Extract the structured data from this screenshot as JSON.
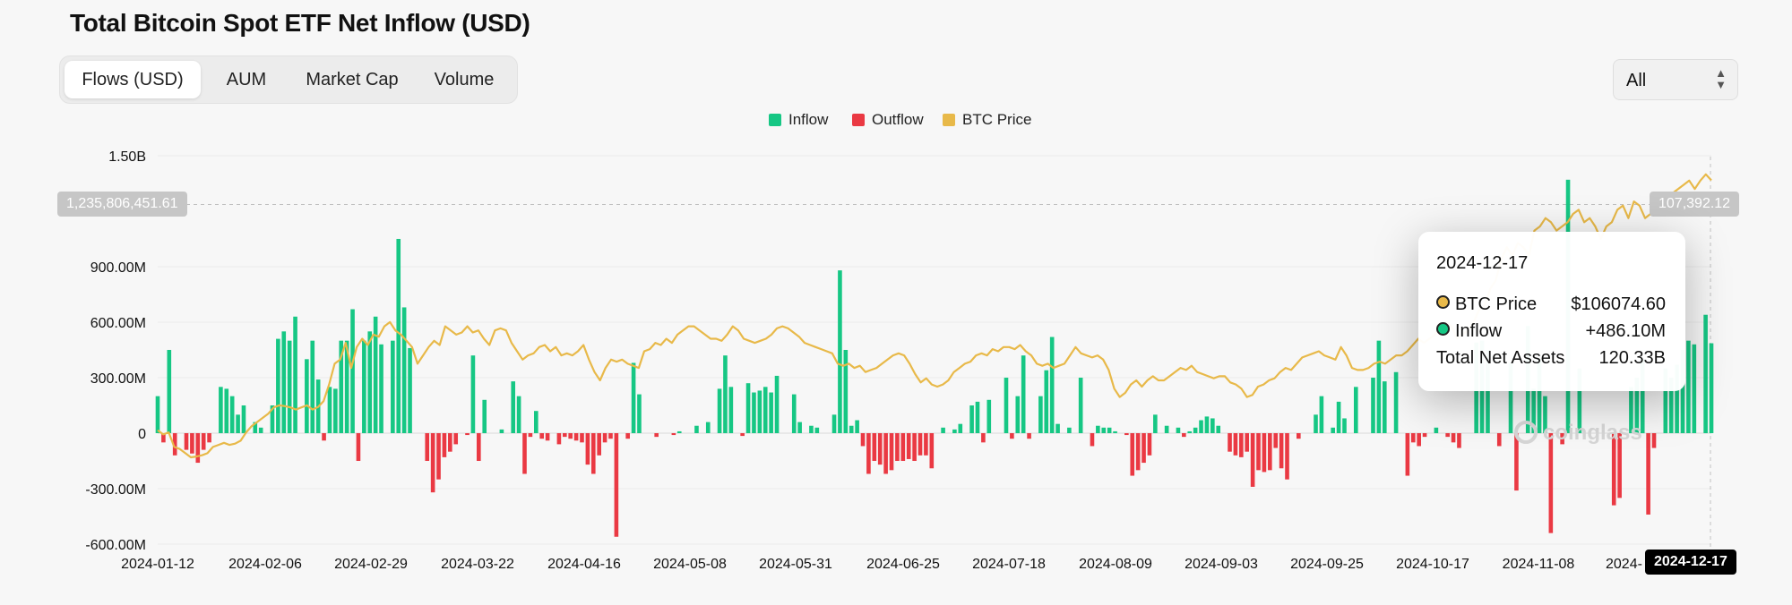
{
  "title": "Total Bitcoin Spot ETF Net Inflow (USD)",
  "tabs": [
    {
      "label": "Flows (USD)",
      "active": true
    },
    {
      "label": "AUM",
      "active": false
    },
    {
      "label": "Market Cap",
      "active": false
    },
    {
      "label": "Volume",
      "active": false
    }
  ],
  "range_select": {
    "value": "All"
  },
  "legend": [
    {
      "label": "Inflow",
      "color": "#16c784"
    },
    {
      "label": "Outflow",
      "color": "#ea3943"
    },
    {
      "label": "BTC Price",
      "color": "#e8b949"
    }
  ],
  "crosshair": {
    "y_label": "1,235,806,451.61",
    "price_label": "107,392.12",
    "x_label": "2024-12-17"
  },
  "tooltip": {
    "date": "2024-12-17",
    "rows": [
      {
        "label": "BTC Price",
        "value": "$106074.60",
        "dot": "#e8b949"
      },
      {
        "label": "Inflow",
        "value": "+486.10M",
        "dot": "#16c784"
      },
      {
        "label": "Total Net Assets",
        "value": "120.33B"
      }
    ]
  },
  "watermark": "coinglass",
  "chart_data": {
    "type": "bar",
    "title": "Total Bitcoin Spot ETF Net Inflow (USD)",
    "y_unit": "USD",
    "ylim": [
      -600000000,
      1500000000
    ],
    "y_ticks": [
      {
        "value": 1500000000,
        "label": "1.50B"
      },
      {
        "value": 900000000,
        "label": "900.00M"
      },
      {
        "value": 600000000,
        "label": "600.00M"
      },
      {
        "value": 300000000,
        "label": "300.00M"
      },
      {
        "value": 0,
        "label": "0"
      },
      {
        "value": -300000000,
        "label": "-300.00M"
      },
      {
        "value": -600000000,
        "label": "-600.00M"
      }
    ],
    "x_ticks": [
      "2024-01-12",
      "2024-02-06",
      "2024-02-29",
      "2024-03-22",
      "2024-04-16",
      "2024-05-08",
      "2024-05-31",
      "2024-06-25",
      "2024-07-18",
      "2024-08-09",
      "2024-09-03",
      "2024-09-25",
      "2024-10-17",
      "2024-11-08",
      "2024-12-17"
    ],
    "x_tick_partial": "2024-",
    "grid": true,
    "legend_position": "top-center",
    "series": [
      {
        "name": "Inflow",
        "color": "#16c784"
      },
      {
        "name": "Outflow",
        "color": "#ea3943"
      },
      {
        "name": "BTC Price",
        "color": "#e8b949",
        "type": "line"
      }
    ],
    "flows_musd": [
      200,
      -50,
      450,
      -120,
      0,
      -90,
      -110,
      -160,
      -90,
      -50,
      0,
      250,
      240,
      200,
      100,
      150,
      0,
      60,
      30,
      0,
      150,
      510,
      550,
      500,
      630,
      0,
      400,
      500,
      290,
      -40,
      250,
      240,
      500,
      500,
      670,
      -150,
      500,
      550,
      630,
      480,
      0,
      500,
      1050,
      680,
      460,
      0,
      0,
      -150,
      -320,
      -250,
      -130,
      -100,
      -60,
      0,
      -10,
      420,
      -150,
      180,
      0,
      0,
      20,
      0,
      280,
      200,
      -220,
      -20,
      120,
      -30,
      -40,
      0,
      -60,
      -20,
      -30,
      -40,
      -50,
      -170,
      -220,
      -120,
      -50,
      -30,
      -560,
      0,
      -30,
      380,
      210,
      0,
      0,
      -20,
      0,
      0,
      -10,
      10,
      0,
      0,
      40,
      0,
      60,
      0,
      240,
      420,
      250,
      0,
      -15,
      270,
      220,
      230,
      250,
      220,
      310,
      0,
      0,
      210,
      60,
      0,
      40,
      30,
      0,
      0,
      100,
      880,
      450,
      40,
      70,
      -70,
      -220,
      -150,
      -170,
      -220,
      -200,
      -150,
      -150,
      -140,
      -150,
      -120,
      -120,
      -190,
      0,
      30,
      0,
      20,
      50,
      0,
      150,
      170,
      -50,
      180,
      0,
      0,
      300,
      -30,
      200,
      420,
      -30,
      0,
      200,
      340,
      520,
      50,
      0,
      30,
      0,
      300,
      0,
      -70,
      40,
      30,
      30,
      10,
      0,
      -10,
      -230,
      -200,
      -160,
      -120,
      100,
      0,
      40,
      0,
      30,
      -20,
      10,
      30,
      70,
      90,
      80,
      40,
      0,
      -100,
      -120,
      -130,
      -100,
      -290,
      -200,
      -210,
      -200,
      -80,
      -190,
      -250,
      0,
      -30,
      0,
      0,
      100,
      200,
      0,
      30,
      170,
      80,
      0,
      250,
      0,
      0,
      300,
      500,
      280,
      0,
      330,
      0,
      -230,
      -50,
      -70,
      -20,
      0,
      30,
      0,
      -20,
      -50,
      -80,
      0,
      0,
      490,
      500,
      450,
      0,
      -70,
      0,
      380,
      -310,
      0,
      580,
      240,
      400,
      200,
      -540,
      0,
      -60,
      1370,
      0,
      350,
      0,
      0,
      0,
      0,
      0,
      -390,
      -350,
      0,
      250,
      300,
      400,
      -440,
      -80,
      0,
      350,
      300,
      370,
      450,
      500,
      480,
      0,
      640,
      486
    ],
    "btc_price_usd": [
      46000,
      45000,
      45500,
      42000,
      41500,
      40500,
      39500,
      39700,
      40000,
      40500,
      42000,
      42500,
      43000,
      42500,
      42800,
      43500,
      45500,
      47000,
      48000,
      49000,
      50000,
      51500,
      52000,
      51800,
      51500,
      51000,
      51500,
      52000,
      51000,
      51600,
      53000,
      57000,
      62000,
      63000,
      67000,
      61000,
      66000,
      68000,
      66500,
      69000,
      68500,
      71000,
      72000,
      70000,
      69000,
      67500,
      66000,
      62000,
      64000,
      66000,
      67500,
      66500,
      71000,
      70000,
      69000,
      69500,
      71000,
      69500,
      70000,
      68000,
      66500,
      70000,
      70500,
      70000,
      67000,
      65000,
      63000,
      64000,
      64500,
      66000,
      66500,
      65000,
      66000,
      64000,
      64500,
      64000,
      65000,
      66500,
      63000,
      60000,
      58000,
      61000,
      63000,
      62500,
      63000,
      62000,
      61500,
      61000,
      65000,
      65500,
      67000,
      66500,
      68000,
      67000,
      69000,
      70000,
      71000,
      71000,
      70000,
      69000,
      68000,
      68000,
      67500,
      69000,
      71000,
      70000,
      68000,
      67500,
      67000,
      67500,
      68000,
      69000,
      70500,
      71000,
      70500,
      69500,
      68500,
      67000,
      66500,
      66000,
      65500,
      65000,
      64500,
      62000,
      61500,
      62000,
      61000,
      61500,
      60000,
      60500,
      61000,
      62000,
      63000,
      64000,
      64500,
      64000,
      62000,
      59500,
      57500,
      58500,
      57000,
      56500,
      57000,
      58000,
      60000,
      61000,
      62000,
      62500,
      64000,
      64500,
      64000,
      65500,
      65000,
      66000,
      66000,
      65500,
      66500,
      65000,
      64000,
      62000,
      61500,
      62000,
      61000,
      61500,
      62000,
      64000,
      66000,
      64500,
      64000,
      63500,
      64000,
      63000,
      60500,
      56000,
      54000,
      55000,
      57000,
      58000,
      56500,
      58000,
      59000,
      58000,
      58000,
      59000,
      60000,
      61000,
      60500,
      61500,
      60000,
      59500,
      59000,
      58500,
      59000,
      59000,
      57500,
      57000,
      56000,
      54000,
      54500,
      56500,
      57000,
      58000,
      58500,
      60000,
      61000,
      60500,
      62000,
      63500,
      64000,
      64500,
      65000,
      64000,
      63500,
      63000,
      66000,
      64000,
      61000,
      60500,
      60500,
      61000,
      62000,
      62500,
      62000,
      63000,
      64000,
      64000,
      65000,
      66500,
      68000,
      67000,
      68000,
      69000,
      71000,
      72000,
      71000,
      68000,
      69000,
      70000,
      72000,
      75000,
      76000,
      80000,
      82000,
      87000,
      90000,
      88000,
      91000,
      90000,
      88000,
      94000,
      95000,
      97000,
      96000,
      94000,
      95000,
      96000,
      98000,
      99000,
      96000,
      97000,
      95000,
      92000,
      95000,
      96000,
      99000,
      100000,
      97000,
      101000,
      100000,
      97000,
      98000,
      100000,
      101000,
      102000,
      103000,
      104000,
      105000,
      106000,
      104000,
      106000,
      107500,
      106075
    ]
  }
}
